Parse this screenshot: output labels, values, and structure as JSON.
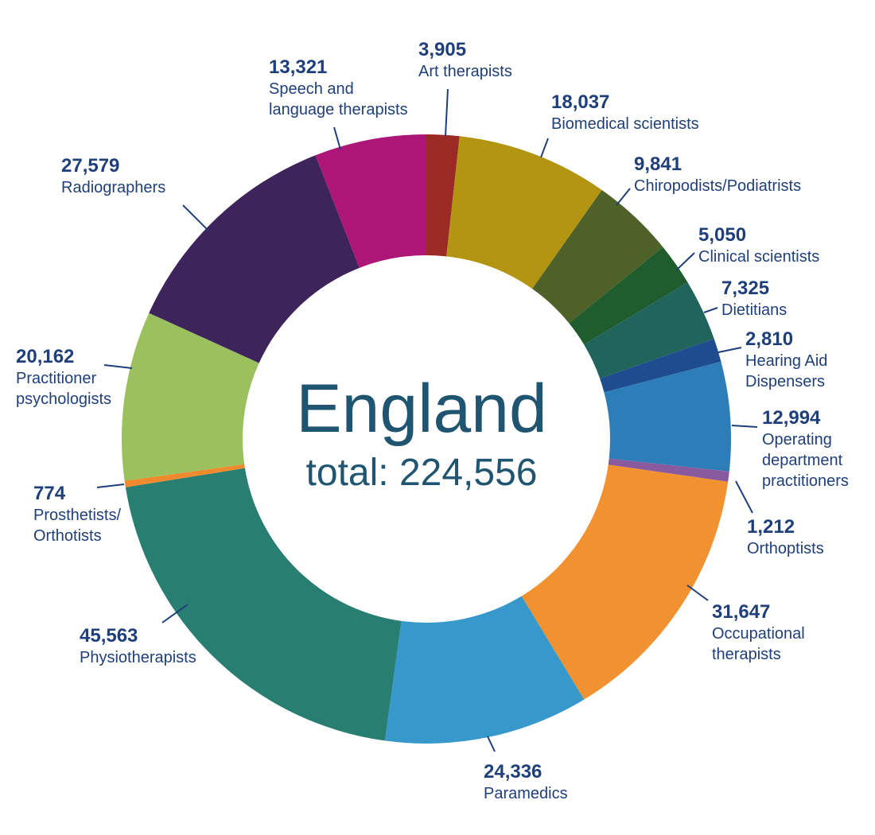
{
  "chart_data": {
    "type": "pie",
    "title": "England",
    "subtitle": "total: 224,556",
    "total": 224556,
    "slices": [
      {
        "key": "art-therapists",
        "value": 3905,
        "value_label": "3,905",
        "label_lines": [
          "Art therapists"
        ],
        "color": "#9b2a24"
      },
      {
        "key": "biomedical-scientists",
        "value": 18037,
        "value_label": "18,037",
        "label_lines": [
          "Biomedical scientists"
        ],
        "color": "#b39511"
      },
      {
        "key": "chiropodists-podiatrists",
        "value": 9841,
        "value_label": "9,841",
        "label_lines": [
          "Chiropodists/Podiatrists"
        ],
        "color": "#4d6128"
      },
      {
        "key": "clinical-scientists",
        "value": 5050,
        "value_label": "5,050",
        "label_lines": [
          "Clinical scientists"
        ],
        "color": "#1f5c2e"
      },
      {
        "key": "dietitians",
        "value": 7325,
        "value_label": "7,325",
        "label_lines": [
          "Dietitians"
        ],
        "color": "#21645c"
      },
      {
        "key": "hearing-aid-dispensers",
        "value": 2810,
        "value_label": "2,810",
        "label_lines": [
          "Hearing Aid",
          "Dispensers"
        ],
        "color": "#1d4d8e"
      },
      {
        "key": "operating-department-practitioners",
        "value": 12994,
        "value_label": "12,994",
        "label_lines": [
          "Operating",
          "department",
          "practitioners"
        ],
        "color": "#2d7db8"
      },
      {
        "key": "orthoptists",
        "value": 1212,
        "value_label": "1,212",
        "label_lines": [
          "Orthoptists"
        ],
        "color": "#8a5a9e"
      },
      {
        "key": "occupational-therapists",
        "value": 31647,
        "value_label": "31,647",
        "label_lines": [
          "Occupational",
          "therapists"
        ],
        "color": "#f1912f"
      },
      {
        "key": "paramedics",
        "value": 24336,
        "value_label": "24,336",
        "label_lines": [
          "Paramedics"
        ],
        "color": "#3798cc"
      },
      {
        "key": "physiotherapists",
        "value": 45563,
        "value_label": "45,563",
        "label_lines": [
          "Physiotherapists"
        ],
        "color": "#287e71"
      },
      {
        "key": "prosthetists-orthotists",
        "value": 774,
        "value_label": "774",
        "label_lines": [
          "Prosthetists/",
          "Orthotists"
        ],
        "color": "#ef8a2e"
      },
      {
        "key": "practitioner-psychologists",
        "value": 20162,
        "value_label": "20,162",
        "label_lines": [
          "Practitioner",
          "psychologists"
        ],
        "color": "#9ac15d"
      },
      {
        "key": "radiographers",
        "value": 27579,
        "value_label": "27,579",
        "label_lines": [
          "Radiographers"
        ],
        "color": "#3d245a"
      },
      {
        "key": "speech-and-language-therapists",
        "value": 13321,
        "value_label": "13,321",
        "label_lines": [
          "Speech and",
          "language therapists"
        ],
        "color": "#ad1677"
      }
    ]
  }
}
